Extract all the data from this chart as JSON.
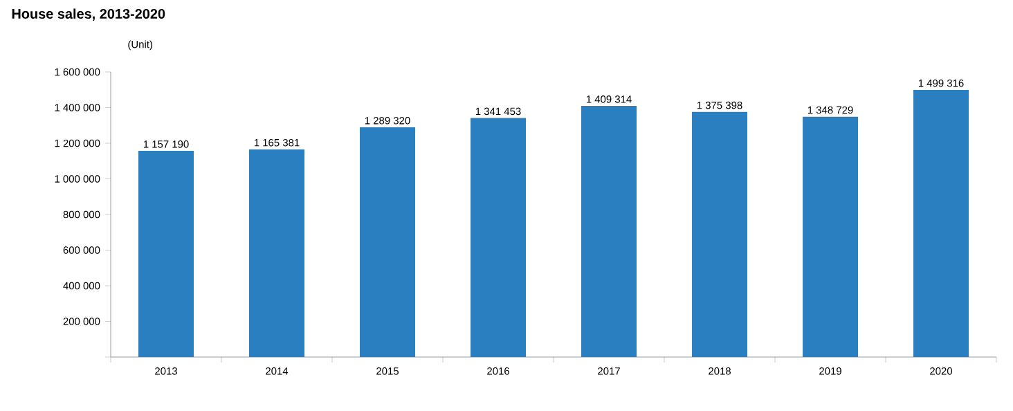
{
  "chart_data": {
    "type": "bar",
    "title": "House sales, 2013-2020",
    "ylabel": "(Unit)",
    "categories": [
      "2013",
      "2014",
      "2015",
      "2016",
      "2017",
      "2018",
      "2019",
      "2020"
    ],
    "values": [
      1157190,
      1165381,
      1289320,
      1341453,
      1409314,
      1375398,
      1348729,
      1499316
    ],
    "value_labels": [
      "1 157 190",
      "1 165 381",
      "1 289 320",
      "1 341 453",
      "1 409 314",
      "1 375 398",
      "1 348 729",
      "1 499 316"
    ],
    "color": "#2a7fc1",
    "ylim": [
      0,
      1600000
    ],
    "yticks": [
      {
        "value": 0,
        "label": null
      },
      {
        "value": 200000,
        "label": "200 000"
      },
      {
        "value": 400000,
        "label": "400 000"
      },
      {
        "value": 600000,
        "label": "600 000"
      },
      {
        "value": 800000,
        "label": "800 000"
      },
      {
        "value": 1000000,
        "label": "1 000 000"
      },
      {
        "value": 1200000,
        "label": "1 200 000"
      },
      {
        "value": 1400000,
        "label": "1 400 000"
      },
      {
        "value": 1600000,
        "label": "1 600 000"
      }
    ],
    "grid": false
  }
}
